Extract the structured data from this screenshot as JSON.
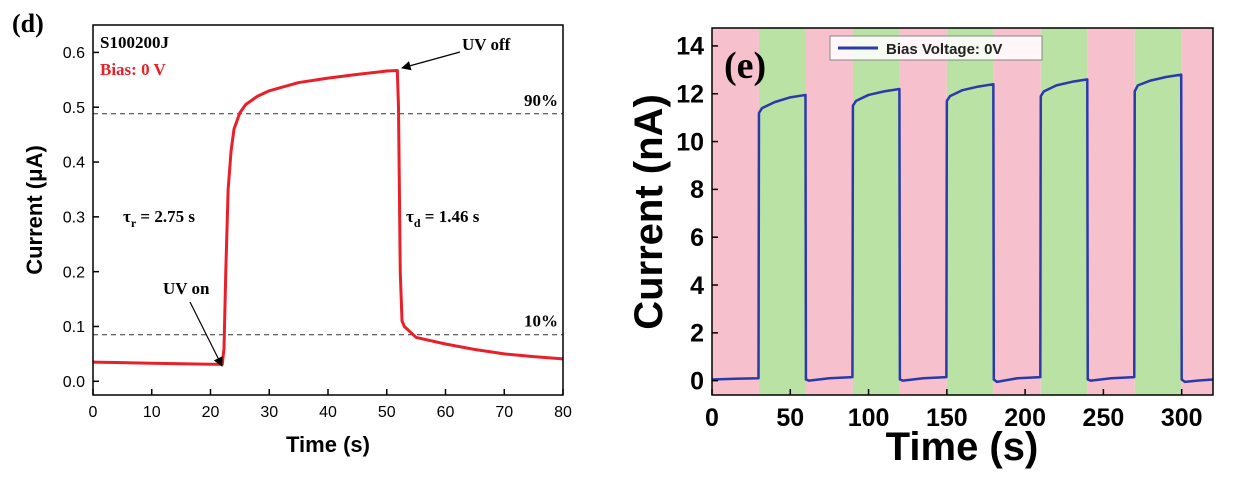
{
  "chart_data": [
    {
      "type": "line",
      "panel_label": "(d)",
      "x_label": "Time (s)",
      "y_label": "Current (μA)",
      "x": [
        0,
        5,
        10,
        15,
        20,
        22,
        22.3,
        22.6,
        23,
        23.5,
        24,
        25,
        26,
        28,
        30,
        35,
        40,
        45,
        50,
        51.8,
        52,
        52.3,
        52.6,
        53,
        55,
        60,
        65,
        70,
        75,
        80
      ],
      "values": [
        0.035,
        0.034,
        0.033,
        0.032,
        0.031,
        0.031,
        0.06,
        0.2,
        0.35,
        0.42,
        0.46,
        0.49,
        0.505,
        0.52,
        0.53,
        0.545,
        0.553,
        0.56,
        0.566,
        0.567,
        0.5,
        0.2,
        0.11,
        0.1,
        0.08,
        0.068,
        0.058,
        0.05,
        0.045,
        0.041
      ],
      "color": "#e8202a",
      "xlim": [
        0,
        80
      ],
      "xticks": [
        0,
        10,
        20,
        30,
        40,
        50,
        60,
        70,
        80
      ],
      "ylim": [
        -0.025,
        0.65
      ],
      "yticks": [
        {
          "value": 0,
          "label": "0.0"
        },
        0.1,
        0.2,
        0.3,
        0.4,
        0.5,
        0.6
      ],
      "hlines": [
        {
          "value": 0.488,
          "label": "90%"
        },
        {
          "value": 0.085,
          "label": "10%"
        }
      ],
      "annotations": [
        {
          "text": "S100200J",
          "color": "#000000"
        },
        {
          "text": "Bias: 0 V",
          "color": "#e8202a"
        },
        {
          "text": "UV off",
          "color": "#000000"
        },
        {
          "text": "UV on",
          "color": "#000000"
        }
      ],
      "tau_labels": [
        {
          "symbol": "τ",
          "sub": "r",
          "text": " = 2.75 s"
        },
        {
          "symbol": "τ",
          "sub": "d",
          "text": " = 1.46 s"
        }
      ]
    },
    {
      "type": "line",
      "panel_label": "(e)",
      "x_label": "Time (s)",
      "y_label": "Current (nA)",
      "x": [
        0,
        15,
        29.7,
        30,
        32,
        40,
        50,
        59.7,
        60,
        62,
        75,
        89.7,
        90,
        92,
        100,
        110,
        119.7,
        120,
        122,
        135,
        149.7,
        150,
        152,
        160,
        170,
        179.7,
        180,
        182,
        195,
        209.7,
        210,
        212,
        220,
        230,
        239.7,
        240,
        242,
        255,
        269.7,
        270,
        272,
        280,
        290,
        299.7,
        300,
        302,
        310,
        320
      ],
      "series": [
        {
          "name": "Bias Voltage: 0V",
          "color": "#2b3aa8",
          "values": [
            0.05,
            0.08,
            0.1,
            11.2,
            11.4,
            11.65,
            11.85,
            11.95,
            0.05,
            0.0,
            0.1,
            0.15,
            11.5,
            11.7,
            11.95,
            12.1,
            12.2,
            0.05,
            0.0,
            0.1,
            0.15,
            11.7,
            11.9,
            12.15,
            12.3,
            12.4,
            0.05,
            -0.05,
            0.1,
            0.15,
            11.9,
            12.1,
            12.35,
            12.5,
            12.6,
            0.05,
            0.0,
            0.1,
            0.15,
            12.1,
            12.35,
            12.55,
            12.7,
            12.8,
            0.05,
            -0.05,
            0.0,
            0.05
          ]
        }
      ],
      "bands": [
        {
          "start": 0,
          "end": 30,
          "color": "#f6c1cc"
        },
        {
          "start": 30,
          "end": 60,
          "color": "#b9e2a4"
        },
        {
          "start": 60,
          "end": 90,
          "color": "#f6c1cc"
        },
        {
          "start": 90,
          "end": 120,
          "color": "#b9e2a4"
        },
        {
          "start": 120,
          "end": 150,
          "color": "#f6c1cc"
        },
        {
          "start": 150,
          "end": 180,
          "color": "#b9e2a4"
        },
        {
          "start": 180,
          "end": 210,
          "color": "#f6c1cc"
        },
        {
          "start": 210,
          "end": 240,
          "color": "#b9e2a4"
        },
        {
          "start": 240,
          "end": 270,
          "color": "#f6c1cc"
        },
        {
          "start": 270,
          "end": 300,
          "color": "#b9e2a4"
        },
        {
          "start": 300,
          "end": 320,
          "color": "#f6c1cc"
        }
      ],
      "xlim": [
        0,
        320
      ],
      "xticks": [
        0,
        50,
        100,
        150,
        200,
        250,
        300
      ],
      "ylim": [
        -0.6,
        14.75
      ],
      "yticks": [
        0,
        2,
        4,
        6,
        8,
        10,
        12,
        14
      ]
    }
  ]
}
